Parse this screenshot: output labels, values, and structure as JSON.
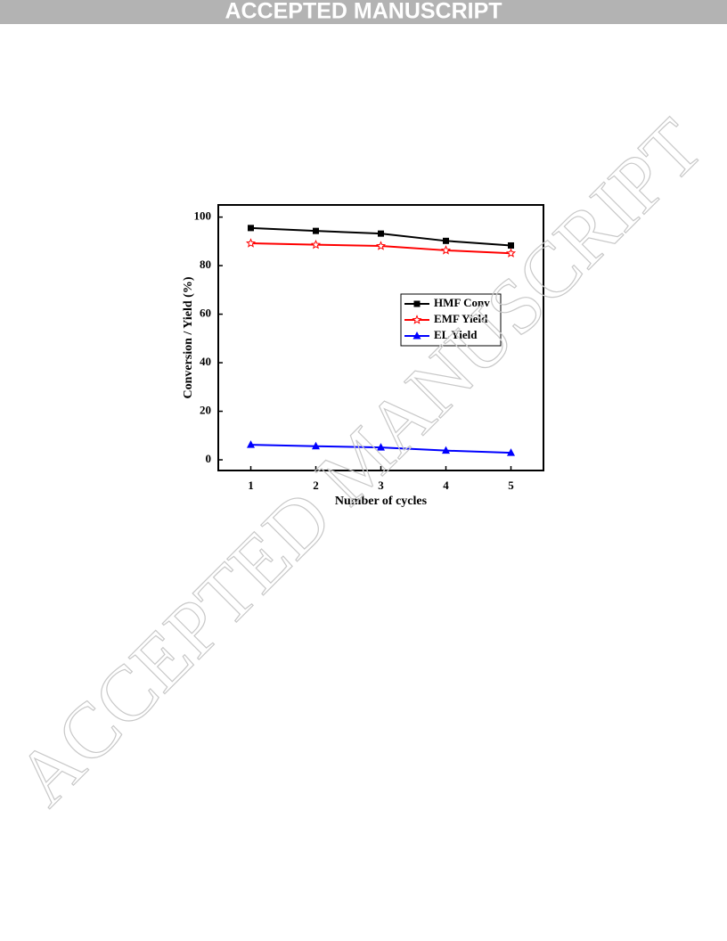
{
  "header": {
    "title": "ACCEPTED MANUSCRIPT"
  },
  "watermark": "ACCEPTED MANUSCRIPT",
  "chart_data": {
    "type": "line",
    "x_label": "Number of cycles",
    "y_label": "Conversion / Yield (%)",
    "x": [
      1,
      2,
      3,
      4,
      5
    ],
    "xlim": [
      0.5,
      5.5
    ],
    "xticks": [
      1,
      2,
      3,
      4,
      5
    ],
    "ylim": [
      -4.4,
      105
    ],
    "yticks": [
      0,
      20,
      40,
      60,
      80,
      100
    ],
    "legend": "center-right",
    "series": [
      {
        "name": "HMF Conv",
        "color": "#000000",
        "marker": "square",
        "values": [
          95.5,
          94.3,
          93.2,
          90.2,
          88.3
        ]
      },
      {
        "name": "EMF Yield",
        "color": "#ff0000",
        "marker": "star",
        "values": [
          89.2,
          88.6,
          88.1,
          86.3,
          85.1
        ]
      },
      {
        "name": "EL Yield",
        "color": "#0000ff",
        "marker": "triangle",
        "values": [
          6.2,
          5.6,
          5.1,
          3.8,
          2.9
        ]
      }
    ]
  }
}
